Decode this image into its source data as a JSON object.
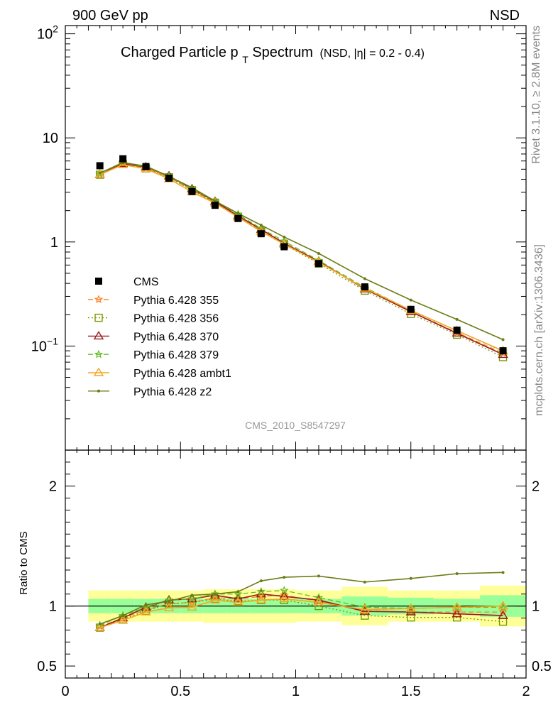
{
  "header": {
    "left": "900 GeV pp",
    "right": "NSD"
  },
  "side": {
    "rivet": "Rivet 3.1.10, ≥ 2.8M events",
    "mcplots": "mcplots.cern.ch [arXiv:1306.3436]"
  },
  "colors": {
    "CMS": "#000000",
    "p355": "#ff7f27",
    "p356": "#7a9a01",
    "p370": "#9b1c1c",
    "p379": "#66bb22",
    "ambt1": "#f5a623",
    "z2": "#6b7d16",
    "band_inner": "#99ff99",
    "band_outer": "#ffff99"
  },
  "chart_data": {
    "type": "line",
    "title": "Charged Particle p",
    "title_sub": "T",
    "title_main_tail": " Spectrum",
    "title_suffix": "(NSD, |η| = 0.2 - 0.4)",
    "analysis_label": "CMS_2010_S8547297",
    "xlim": [
      0,
      2
    ],
    "ylim": [
      0.01,
      120
    ],
    "ylog": true,
    "ratio_ylim": [
      0.4,
      2.3
    ],
    "ratio_ylabel": "Ratio to CMS",
    "x_tick_labels": [
      "0",
      "0.5",
      "1",
      "1.5",
      "2"
    ],
    "y_tick_labels": [
      "10^-1",
      "1",
      "10",
      "10^2"
    ],
    "ratio_tick_labels": [
      "0.5",
      "1",
      "2"
    ],
    "x": [
      0.15,
      0.25,
      0.35,
      0.45,
      0.55,
      0.65,
      0.75,
      0.85,
      0.95,
      1.1,
      1.3,
      1.5,
      1.7,
      1.9
    ],
    "bins": [
      [
        0.1,
        0.2
      ],
      [
        0.2,
        0.3
      ],
      [
        0.3,
        0.4
      ],
      [
        0.4,
        0.5
      ],
      [
        0.5,
        0.6
      ],
      [
        0.6,
        0.7
      ],
      [
        0.7,
        0.8
      ],
      [
        0.8,
        0.9
      ],
      [
        0.9,
        1.0
      ],
      [
        1.0,
        1.2
      ],
      [
        1.2,
        1.4
      ],
      [
        1.4,
        1.6
      ],
      [
        1.6,
        1.8
      ],
      [
        1.8,
        2.0
      ]
    ],
    "data": {
      "name": "CMS",
      "values": [
        5.4,
        6.3,
        5.3,
        4.1,
        3.05,
        2.25,
        1.68,
        1.2,
        0.9,
        0.62,
        0.37,
        0.225,
        0.142,
        0.09
      ],
      "band_inner": [
        0.06,
        0.06,
        0.06,
        0.06,
        0.06,
        0.06,
        0.06,
        0.06,
        0.06,
        0.06,
        0.08,
        0.07,
        0.06,
        0.09
      ],
      "band_outer": [
        0.13,
        0.13,
        0.13,
        0.13,
        0.13,
        0.14,
        0.14,
        0.14,
        0.14,
        0.13,
        0.16,
        0.13,
        0.13,
        0.17
      ]
    },
    "series": [
      {
        "name": "Pythia 6.428 355",
        "key": "p355",
        "marker": "star",
        "dash": "7,4",
        "ratio": [
          0.83,
          0.9,
          0.97,
          1.02,
          1.03,
          1.07,
          1.06,
          1.08,
          1.09,
          1.04,
          0.96,
          0.95,
          0.95,
          0.95
        ]
      },
      {
        "name": "Pythia 6.428 356",
        "key": "p356",
        "marker": "square",
        "dash": "2,3",
        "ratio": [
          0.82,
          0.89,
          0.96,
          1.02,
          1.03,
          1.06,
          1.04,
          1.05,
          1.05,
          1.0,
          0.92,
          0.905,
          0.905,
          0.87
        ]
      },
      {
        "name": "Pythia 6.428 370",
        "key": "p370",
        "marker": "triangle",
        "dash": "",
        "ratio": [
          0.82,
          0.9,
          0.99,
          1.05,
          1.06,
          1.09,
          1.06,
          1.1,
          1.08,
          1.05,
          0.955,
          0.95,
          0.935,
          0.92
        ]
      },
      {
        "name": "Pythia 6.428 379",
        "key": "p379",
        "marker": "star",
        "dash": "7,4",
        "ratio": [
          0.84,
          0.92,
          0.99,
          1.05,
          1.06,
          1.1,
          1.1,
          1.12,
          1.13,
          1.07,
          0.99,
          0.98,
          0.99,
          0.99
        ]
      },
      {
        "name": "Pythia 6.428 ambt1",
        "key": "ambt1",
        "marker": "triangle",
        "dash": "",
        "ratio": [
          0.82,
          0.88,
          0.95,
          0.985,
          0.99,
          1.05,
          1.03,
          1.05,
          1.06,
          1.03,
          0.97,
          0.98,
          0.99,
          1.0
        ]
      },
      {
        "name": "Pythia 6.428 z2",
        "key": "z2",
        "marker": "dot",
        "dash": "",
        "ratio": [
          0.85,
          0.92,
          1.01,
          1.04,
          1.09,
          1.1,
          1.12,
          1.21,
          1.24,
          1.25,
          1.2,
          1.23,
          1.27,
          1.28
        ]
      }
    ]
  }
}
